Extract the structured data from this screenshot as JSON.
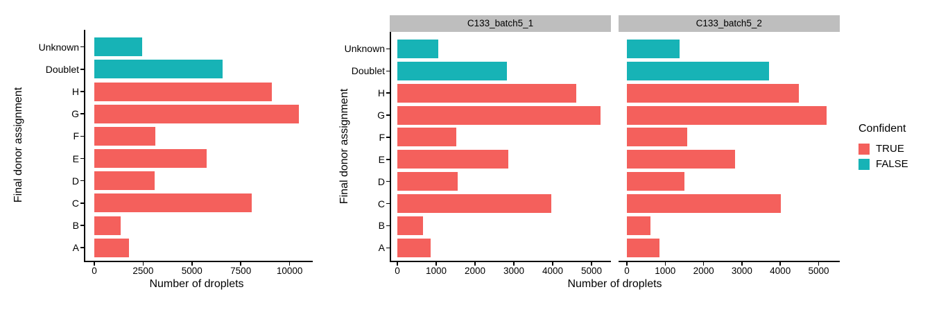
{
  "legend": {
    "title": "Confident",
    "items": [
      {
        "label": "TRUE",
        "color": "#F4605C"
      },
      {
        "label": "FALSE",
        "color": "#17B3B6"
      }
    ]
  },
  "colors": {
    "confident_true": "#F4605C",
    "confident_false": "#17B3B6",
    "strip_background": "#BEBEBE",
    "axis": "#000000",
    "text": "#000000"
  },
  "chart_data": [
    {
      "type": "bar",
      "orientation": "horizontal",
      "title": "",
      "ylabel": "Final donor assignment",
      "xlabel": "Number of droplets",
      "categories": [
        "Unknown",
        "Doublet",
        "H",
        "G",
        "F",
        "E",
        "D",
        "C",
        "B",
        "A"
      ],
      "values": [
        2450,
        6560,
        9080,
        10470,
        3130,
        5750,
        3100,
        8060,
        1330,
        1760
      ],
      "confident": [
        false,
        false,
        true,
        true,
        true,
        true,
        true,
        true,
        true,
        true
      ],
      "x_ticks": [
        0,
        2500,
        5000,
        7500,
        10000
      ],
      "xlim": [
        0,
        11000
      ],
      "grid": false,
      "legend_position": "none"
    },
    {
      "type": "bar",
      "orientation": "horizontal",
      "faceted": true,
      "title": "",
      "ylabel": "Final donor assignment",
      "xlabel": "Number of droplets",
      "categories": [
        "Unknown",
        "Doublet",
        "H",
        "G",
        "F",
        "E",
        "D",
        "C",
        "B",
        "A"
      ],
      "confident": [
        false,
        false,
        true,
        true,
        true,
        true,
        true,
        true,
        true,
        true
      ],
      "x_ticks": [
        0,
        1000,
        2000,
        3000,
        4000,
        5000
      ],
      "xlim": [
        0,
        5580
      ],
      "grid": false,
      "facets": [
        {
          "title": "C133_batch5_1",
          "values": [
            1050,
            2815,
            4610,
            5230,
            1510,
            2865,
            1545,
            3965,
            665,
            860
          ]
        },
        {
          "title": "C133_batch5_2",
          "values": [
            1370,
            3700,
            4490,
            5210,
            1580,
            2820,
            1505,
            4010,
            620,
            845
          ]
        }
      ],
      "legend_position": "right"
    }
  ]
}
